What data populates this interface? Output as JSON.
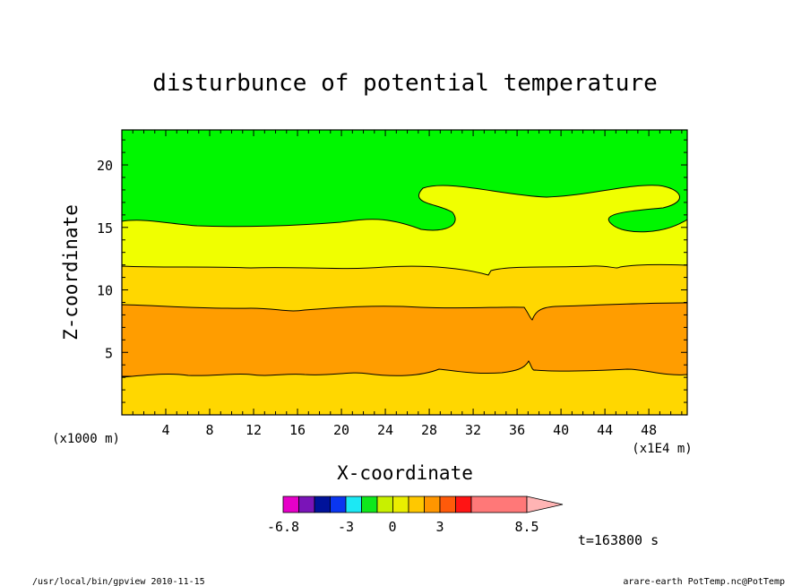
{
  "chart_data": {
    "type": "heatmap",
    "title": "disturbunce of potential temperature",
    "xlabel": "X-coordinate",
    "ylabel": "Z-coordinate",
    "x_unit_left": "(x1000 m)",
    "x_unit_right": "(x1E4 m)",
    "xlim": [
      0,
      51.5
    ],
    "ylim": [
      0,
      22.8
    ],
    "x_ticks": [
      4,
      8,
      12,
      16,
      20,
      24,
      28,
      32,
      36,
      40,
      44,
      48
    ],
    "y_ticks": [
      5,
      10,
      15,
      20
    ],
    "contour_levels": [
      -6.8,
      -3,
      0,
      3,
      8.5
    ],
    "bands": [
      {
        "color": "#ffd700",
        "from_z": 0,
        "to_z": 3.1
      },
      {
        "color": "#ff9d00",
        "from_z": 3.1,
        "to_z": 8.8
      },
      {
        "color": "#ffd700",
        "from_z": 8.8,
        "to_z": 12.0
      },
      {
        "color": "#f0ff00",
        "from_z": 12.0,
        "to_z": 15.5
      },
      {
        "color": "#00f700",
        "from_z": 15.5,
        "to_z": 22.8
      }
    ],
    "colorbar": {
      "labels": [
        "-6.8",
        "-3",
        "0",
        "3",
        "8.5"
      ],
      "colors": [
        "#e600c8",
        "#7a14b8",
        "#00129a",
        "#0a36f0",
        "#1ce8f4",
        "#0fe81c",
        "#c8f000",
        "#eaee00",
        "#ffc800",
        "#ff9600",
        "#ff5a0a",
        "#ff1414",
        "#ff7878",
        "#ffb4b4"
      ]
    },
    "time_label": "t=163800 s"
  },
  "footer": {
    "left": "/usr/local/bin/gpview  2010-11-15",
    "right": "arare-earth_PotTemp.nc@PotTemp"
  }
}
